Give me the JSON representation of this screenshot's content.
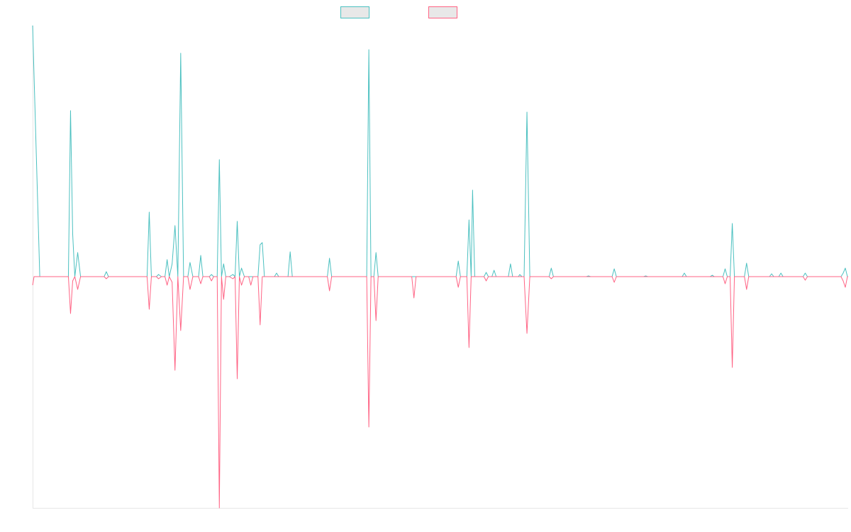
{
  "chart_data": {
    "type": "line",
    "title": "",
    "xlabel": "",
    "ylabel": "",
    "grid": false,
    "legend_position": "top-center",
    "ylim": [
      -326,
      354
    ],
    "series": [
      {
        "color": "#4bc0c0",
        "points": [
          [
            0,
            354
          ],
          [
            1,
            0
          ],
          [
            5,
            0
          ],
          [
            5.3,
            234
          ],
          [
            5.6,
            60
          ],
          [
            5.9,
            0
          ],
          [
            6.3,
            34
          ],
          [
            6.7,
            0
          ],
          [
            10,
            0
          ],
          [
            10.3,
            7
          ],
          [
            10.6,
            0
          ],
          [
            16,
            0
          ],
          [
            16.3,
            91
          ],
          [
            16.6,
            0
          ],
          [
            17.3,
            0
          ],
          [
            17.6,
            3
          ],
          [
            18,
            0
          ],
          [
            18.5,
            0
          ],
          [
            18.8,
            24
          ],
          [
            19.1,
            0
          ],
          [
            19.5,
            18
          ],
          [
            19.9,
            72
          ],
          [
            20.3,
            0
          ],
          [
            20.7,
            315
          ],
          [
            21.1,
            0
          ],
          [
            21.7,
            0
          ],
          [
            22,
            20
          ],
          [
            22.4,
            0
          ],
          [
            23.2,
            0
          ],
          [
            23.5,
            30
          ],
          [
            23.8,
            0
          ],
          [
            24.7,
            0
          ],
          [
            25,
            3
          ],
          [
            25.3,
            0
          ],
          [
            25.8,
            0
          ],
          [
            26.1,
            165
          ],
          [
            26.4,
            0
          ],
          [
            26.7,
            18
          ],
          [
            27,
            0
          ],
          [
            27.5,
            0
          ],
          [
            28,
            3
          ],
          [
            28.3,
            0
          ],
          [
            28.6,
            78
          ],
          [
            28.9,
            0
          ],
          [
            29.2,
            12
          ],
          [
            29.6,
            0
          ],
          [
            31.5,
            0
          ],
          [
            31.8,
            45
          ],
          [
            32.1,
            48
          ],
          [
            32.4,
            0
          ],
          [
            33.8,
            0
          ],
          [
            34.1,
            5
          ],
          [
            34.4,
            0
          ],
          [
            35.7,
            0
          ],
          [
            36,
            35
          ],
          [
            36.3,
            0
          ],
          [
            41.2,
            0
          ],
          [
            41.5,
            26
          ],
          [
            41.8,
            0
          ],
          [
            46.7,
            0
          ],
          [
            47,
            320
          ],
          [
            47.3,
            0
          ],
          [
            47.7,
            0
          ],
          [
            48,
            34
          ],
          [
            48.3,
            0
          ],
          [
            59.2,
            0
          ],
          [
            59.5,
            22
          ],
          [
            59.8,
            0
          ],
          [
            60.7,
            0
          ],
          [
            61,
            80
          ],
          [
            61.3,
            0
          ],
          [
            61.5,
            122
          ],
          [
            61.8,
            0
          ],
          [
            63.1,
            0
          ],
          [
            63.4,
            6
          ],
          [
            63.7,
            0
          ],
          [
            64.2,
            0
          ],
          [
            64.5,
            9
          ],
          [
            64.8,
            0
          ],
          [
            66.5,
            0
          ],
          [
            66.8,
            18
          ],
          [
            67.1,
            0
          ],
          [
            67.9,
            0
          ],
          [
            68.1,
            3
          ],
          [
            68.4,
            0
          ],
          [
            68.7,
            0
          ],
          [
            69.1,
            232
          ],
          [
            69.5,
            0
          ],
          [
            72.2,
            0
          ],
          [
            72.5,
            12
          ],
          [
            72.8,
            0
          ],
          [
            77.4,
            0
          ],
          [
            77.7,
            1
          ],
          [
            78,
            0
          ],
          [
            81,
            0
          ],
          [
            81.3,
            11
          ],
          [
            81.6,
            0
          ],
          [
            85.4,
            0
          ],
          [
            85.7,
            1
          ],
          [
            86,
            0
          ],
          [
            90.8,
            0
          ],
          [
            91.1,
            5
          ],
          [
            91.4,
            0
          ],
          [
            94.7,
            0
          ],
          [
            95,
            2
          ],
          [
            95.3,
            0
          ],
          [
            96.5,
            0
          ],
          [
            96.8,
            11
          ],
          [
            97.1,
            0
          ],
          [
            97.5,
            0
          ],
          [
            97.8,
            75
          ],
          [
            98.1,
            0
          ],
          [
            99.5,
            0
          ],
          [
            99.8,
            19
          ],
          [
            100.1,
            0
          ],
          [
            103,
            0
          ],
          [
            103.3,
            4
          ],
          [
            103.6,
            0
          ],
          [
            104.3,
            0
          ],
          [
            104.6,
            5
          ],
          [
            104.9,
            0
          ],
          [
            107.7,
            0
          ],
          [
            108,
            5
          ],
          [
            108.3,
            0
          ],
          [
            113,
            0
          ],
          [
            113.3,
            5
          ],
          [
            113.6,
            12
          ],
          [
            113.9,
            0
          ],
          [
            114,
            0
          ]
        ]
      },
      {
        "color": "#ff6384",
        "points": [
          [
            0,
            -12
          ],
          [
            0.2,
            0
          ],
          [
            5,
            0
          ],
          [
            5.3,
            -52
          ],
          [
            5.6,
            -6
          ],
          [
            5.9,
            0
          ],
          [
            6.3,
            -18
          ],
          [
            6.7,
            0
          ],
          [
            10,
            0
          ],
          [
            10.3,
            -3
          ],
          [
            10.6,
            0
          ],
          [
            16,
            0
          ],
          [
            16.3,
            -46
          ],
          [
            16.6,
            0
          ],
          [
            17.3,
            0
          ],
          [
            17.6,
            -3
          ],
          [
            18,
            0
          ],
          [
            18.5,
            0
          ],
          [
            18.8,
            -12
          ],
          [
            19.1,
            0
          ],
          [
            19.5,
            -8
          ],
          [
            19.9,
            -132
          ],
          [
            20.3,
            0
          ],
          [
            20.7,
            -76
          ],
          [
            21.1,
            0
          ],
          [
            21.7,
            0
          ],
          [
            22,
            -18
          ],
          [
            22.4,
            0
          ],
          [
            23.2,
            0
          ],
          [
            23.5,
            -10
          ],
          [
            23.8,
            0
          ],
          [
            24.7,
            0
          ],
          [
            25,
            -6
          ],
          [
            25.3,
            0
          ],
          [
            25.8,
            0
          ],
          [
            26.1,
            -326
          ],
          [
            26.4,
            0
          ],
          [
            26.7,
            -32
          ],
          [
            27,
            0
          ],
          [
            27.5,
            0
          ],
          [
            28,
            -3
          ],
          [
            28.3,
            0
          ],
          [
            28.6,
            -144
          ],
          [
            28.9,
            0
          ],
          [
            29.2,
            -12
          ],
          [
            29.6,
            0
          ],
          [
            30.2,
            0
          ],
          [
            30.5,
            -12
          ],
          [
            30.8,
            0
          ],
          [
            31.5,
            0
          ],
          [
            31.8,
            -68
          ],
          [
            32.1,
            0
          ],
          [
            41.2,
            0
          ],
          [
            41.5,
            -20
          ],
          [
            41.8,
            0
          ],
          [
            46.7,
            0
          ],
          [
            47,
            -212
          ],
          [
            47.3,
            0
          ],
          [
            47.7,
            0
          ],
          [
            48,
            -62
          ],
          [
            48.3,
            0
          ],
          [
            53,
            0
          ],
          [
            53.3,
            -30
          ],
          [
            53.6,
            0
          ],
          [
            59.2,
            0
          ],
          [
            59.5,
            -15
          ],
          [
            59.8,
            0
          ],
          [
            60.7,
            0
          ],
          [
            61,
            -100
          ],
          [
            61.3,
            0
          ],
          [
            63.1,
            0
          ],
          [
            63.4,
            -6
          ],
          [
            63.7,
            0
          ],
          [
            68.7,
            0
          ],
          [
            69.1,
            -80
          ],
          [
            69.5,
            0
          ],
          [
            72.2,
            0
          ],
          [
            72.5,
            -3
          ],
          [
            72.8,
            0
          ],
          [
            81,
            0
          ],
          [
            81.3,
            -8
          ],
          [
            81.6,
            0
          ],
          [
            96.5,
            0
          ],
          [
            96.8,
            -10
          ],
          [
            97.1,
            0
          ],
          [
            97.5,
            0
          ],
          [
            97.8,
            -128
          ],
          [
            98.1,
            0
          ],
          [
            99.5,
            0
          ],
          [
            99.8,
            -18
          ],
          [
            100.1,
            0
          ],
          [
            107.7,
            0
          ],
          [
            108,
            -5
          ],
          [
            108.3,
            0
          ],
          [
            113,
            0
          ],
          [
            113.3,
            -6
          ],
          [
            113.6,
            -15
          ],
          [
            113.9,
            0
          ],
          [
            114,
            0
          ]
        ]
      }
    ]
  }
}
